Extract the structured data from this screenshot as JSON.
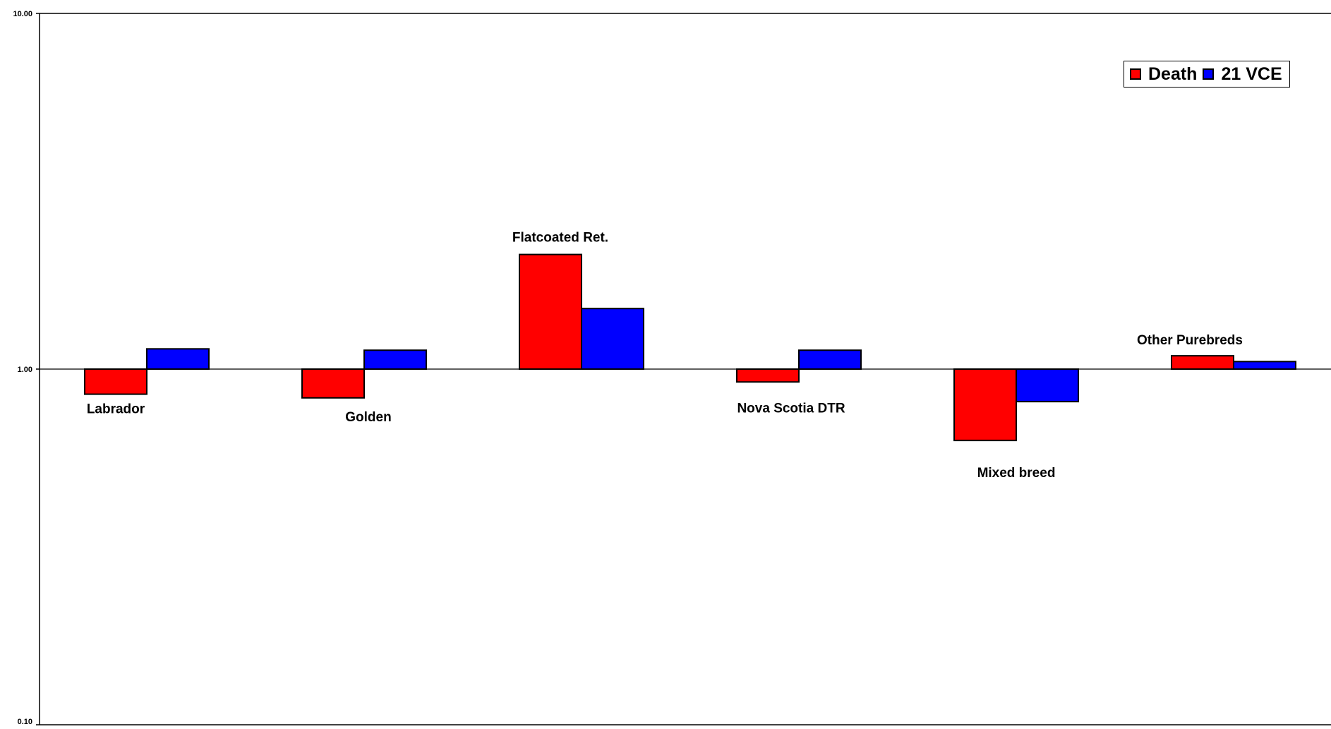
{
  "chart_data": {
    "type": "bar",
    "title": "",
    "xlabel": "",
    "ylabel": "",
    "y_scale": "log",
    "ylim": [
      0.1,
      10
    ],
    "baseline": 1,
    "y_ticks": [
      "10.00",
      "1.00",
      "0.10"
    ],
    "grid": false,
    "legend_position": "top-right",
    "categories": [
      "Labrador",
      "Golden",
      "Flatcoated Ret.",
      "Nova Scotia DTR",
      "Mixed breed",
      "Other Purebreds"
    ],
    "category_label_position": [
      "below",
      "below",
      "above",
      "below",
      "below",
      "above"
    ],
    "series": [
      {
        "name": "Death",
        "color": "#ff0000",
        "values": [
          0.85,
          0.83,
          2.1,
          0.92,
          0.63,
          1.09
        ]
      },
      {
        "name": "21 VCE",
        "color": "#0000ff",
        "values": [
          1.14,
          1.13,
          1.48,
          1.13,
          0.81,
          1.05
        ]
      }
    ]
  },
  "legend": {
    "items": [
      {
        "label": "Death",
        "color": "#ff0000",
        "icon": "red-square-swatch"
      },
      {
        "label": "21 VCE",
        "color": "#0000ff",
        "icon": "blue-square-swatch"
      }
    ]
  }
}
